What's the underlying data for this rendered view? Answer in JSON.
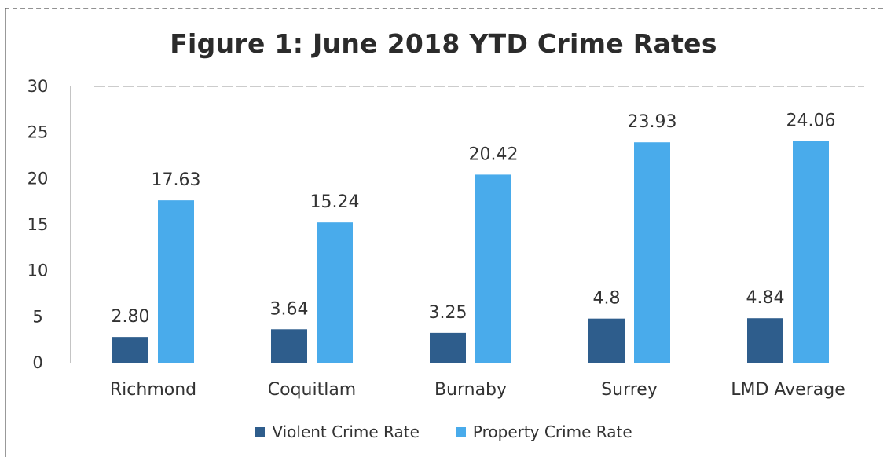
{
  "chart_data": {
    "type": "bar",
    "title": "Figure 1: June 2018 YTD Crime Rates",
    "categories": [
      "Richmond",
      "Coquitlam",
      "Burnaby",
      "Surrey",
      "LMD Average"
    ],
    "series": [
      {
        "name": "Violent Crime Rate",
        "values": [
          2.8,
          3.64,
          3.25,
          4.8,
          4.84
        ],
        "labels": [
          "2.80",
          "3.64",
          "3.25",
          "4.8",
          "4.84"
        ],
        "color": "#2e5d8c"
      },
      {
        "name": "Property Crime Rate",
        "values": [
          17.63,
          15.24,
          20.42,
          23.93,
          24.06
        ],
        "labels": [
          "17.63",
          "15.24",
          "20.42",
          "23.93",
          "24.06"
        ],
        "color": "#49abeb"
      }
    ],
    "yticks": [
      "0",
      "5",
      "10",
      "15",
      "20",
      "25",
      "30"
    ],
    "ylim": [
      0,
      30
    ],
    "legend_position": "bottom",
    "grid": false
  }
}
